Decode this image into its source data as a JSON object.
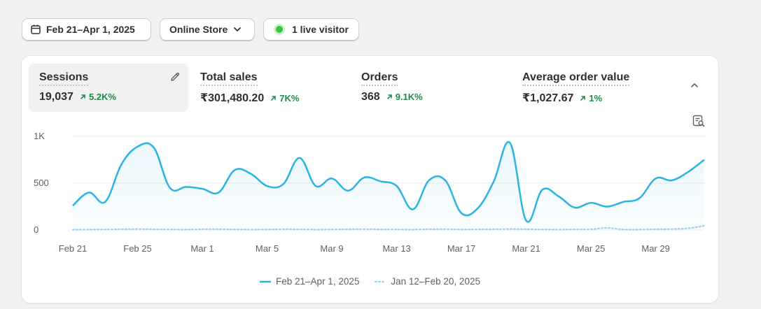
{
  "filters": {
    "date_range": "Feb 21–Apr 1, 2025",
    "channel": "Online Store",
    "live_visitors": "1 live visitor"
  },
  "metrics": [
    {
      "label": "Sessions",
      "value": "19,037",
      "delta": "5.2K%"
    },
    {
      "label": "Total sales",
      "value": "₹301,480.20",
      "delta": "7K%"
    },
    {
      "label": "Orders",
      "value": "368",
      "delta": "9.1K%"
    },
    {
      "label": "Average order value",
      "value": "₹1,027.67",
      "delta": "1%"
    }
  ],
  "colors": {
    "accent": "#2bb3e3",
    "positive": "#1e8a4a",
    "live": "#35c53c"
  },
  "icons": [
    "calendar-icon",
    "chevron-down-icon",
    "live-dot-icon",
    "pencil-icon",
    "chevron-up-icon",
    "explore-icon",
    "arrow-up-right-icon"
  ],
  "chart_data": {
    "type": "line",
    "x": [
      "Feb 21",
      "Feb 22",
      "Feb 23",
      "Feb 24",
      "Feb 25",
      "Feb 26",
      "Feb 27",
      "Feb 28",
      "Mar 1",
      "Mar 2",
      "Mar 3",
      "Mar 4",
      "Mar 5",
      "Mar 6",
      "Mar 7",
      "Mar 8",
      "Mar 9",
      "Mar 10",
      "Mar 11",
      "Mar 12",
      "Mar 13",
      "Mar 14",
      "Mar 15",
      "Mar 16",
      "Mar 17",
      "Mar 18",
      "Mar 19",
      "Mar 20",
      "Mar 21",
      "Mar 22",
      "Mar 23",
      "Mar 24",
      "Mar 25",
      "Mar 26",
      "Mar 27",
      "Mar 28",
      "Mar 29",
      "Mar 30",
      "Mar 31",
      "Apr 1"
    ],
    "x_ticks": [
      "Feb 21",
      "Feb 25",
      "Mar 1",
      "Mar 5",
      "Mar 9",
      "Mar 13",
      "Mar 17",
      "Mar 21",
      "Mar 25",
      "Mar 29"
    ],
    "y_ticks": [
      "0",
      "500",
      "1K"
    ],
    "ylim": [
      0,
      1000
    ],
    "grid": true,
    "legend_position": "bottom-center",
    "series": [
      {
        "name": "Feb 21–Apr 1, 2025",
        "style": "solid",
        "values": [
          260,
          400,
          300,
          700,
          890,
          880,
          450,
          460,
          440,
          400,
          640,
          600,
          470,
          490,
          770,
          470,
          550,
          420,
          560,
          520,
          470,
          220,
          530,
          530,
          180,
          230,
          520,
          930,
          100,
          430,
          360,
          240,
          290,
          250,
          300,
          340,
          550,
          530,
          620,
          750
        ]
      },
      {
        "name": "Jan 12–Feb 20, 2025",
        "style": "dotted",
        "values": [
          5,
          5,
          6,
          8,
          10,
          7,
          6,
          5,
          8,
          9,
          6,
          5,
          6,
          8,
          7,
          5,
          6,
          8,
          9,
          7,
          6,
          5,
          8,
          9,
          6,
          7,
          8,
          10,
          8,
          6,
          5,
          7,
          8,
          22,
          6,
          5,
          8,
          10,
          18,
          45
        ]
      }
    ]
  }
}
